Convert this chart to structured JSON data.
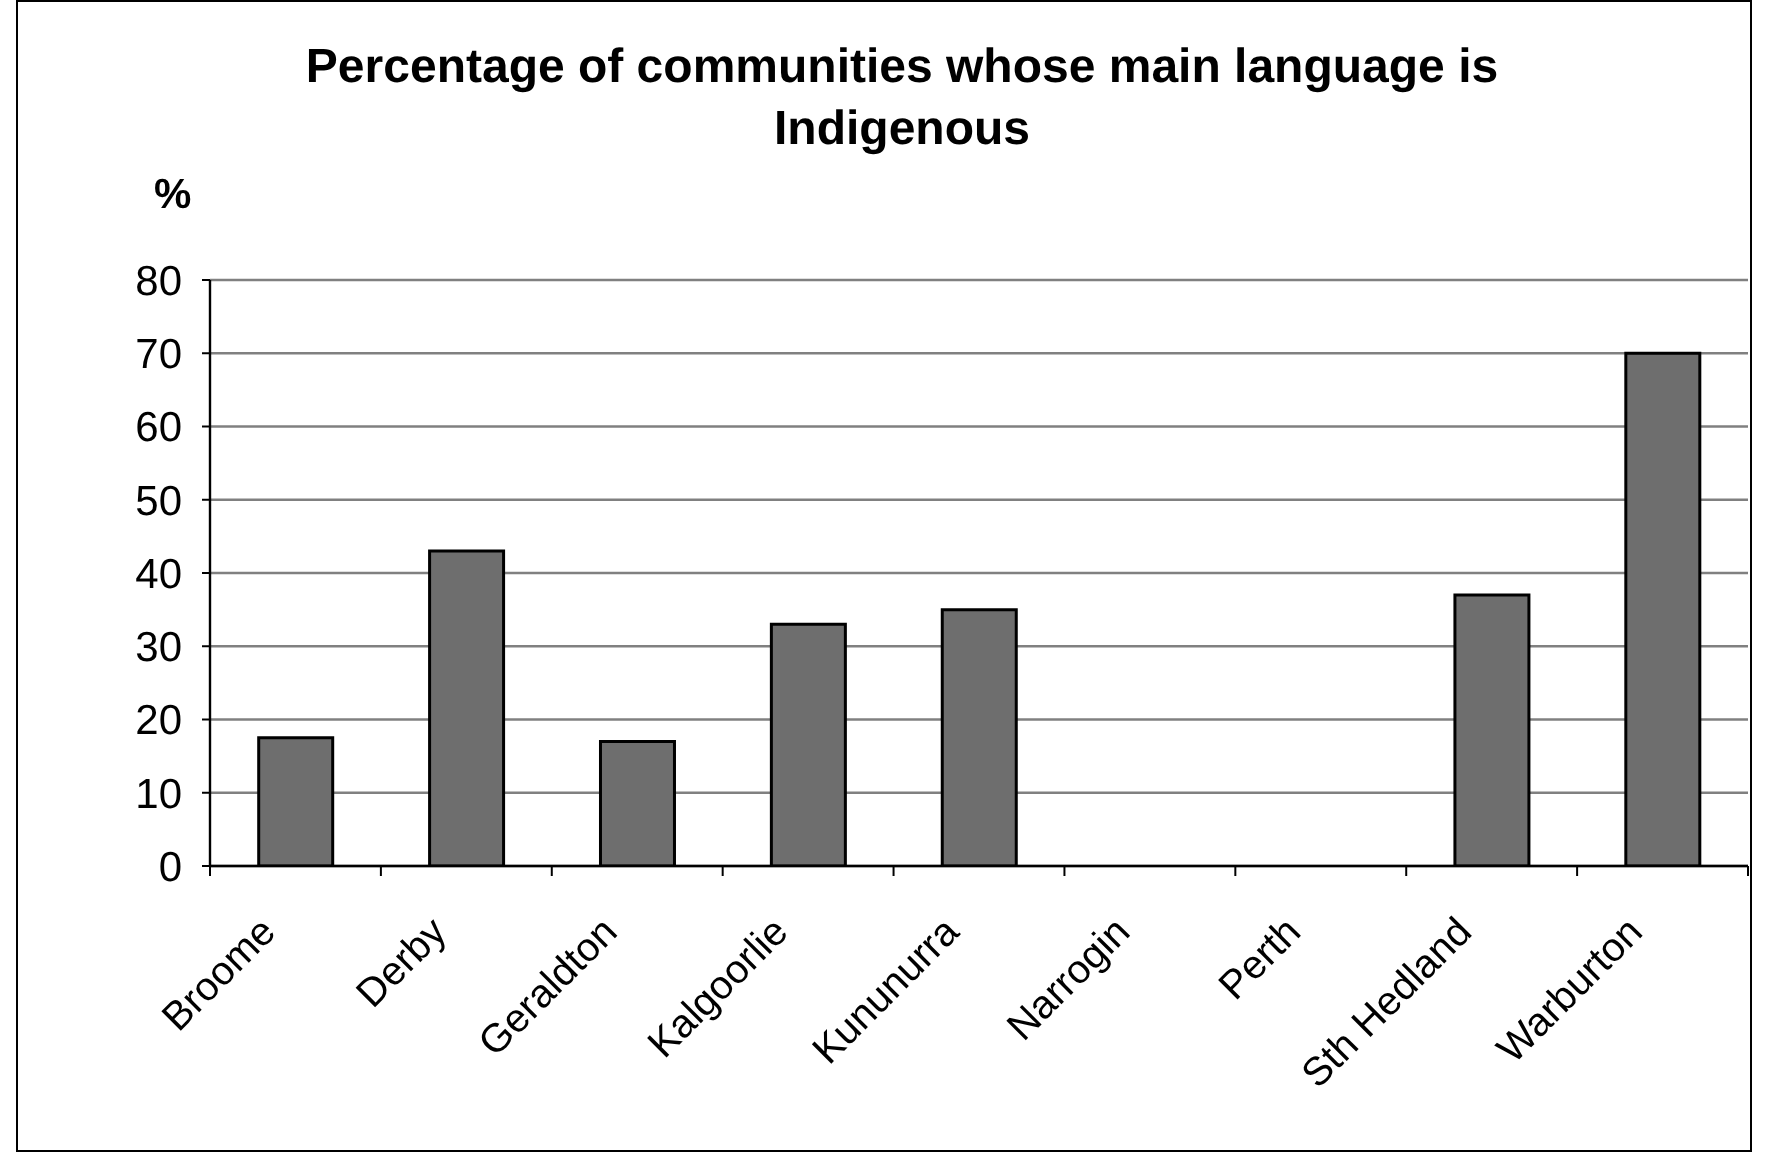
{
  "chart_data": {
    "type": "bar",
    "title": "Percentage of communities whose main language is Indigenous",
    "ylabel": "%",
    "categories": [
      "Broome",
      "Derby",
      "Geraldton",
      "Kalgoorlie",
      "Kununurra",
      "Narrogin",
      "Perth",
      "Sth Hedland",
      "Warburton"
    ],
    "values": [
      17.5,
      43,
      17,
      33,
      35,
      0,
      0,
      37,
      70
    ],
    "color": "#6e6e6e",
    "ylim": [
      0,
      80
    ],
    "yticks": [
      0,
      10,
      20,
      30,
      40,
      50,
      60,
      70,
      80
    ],
    "grid": "y"
  }
}
